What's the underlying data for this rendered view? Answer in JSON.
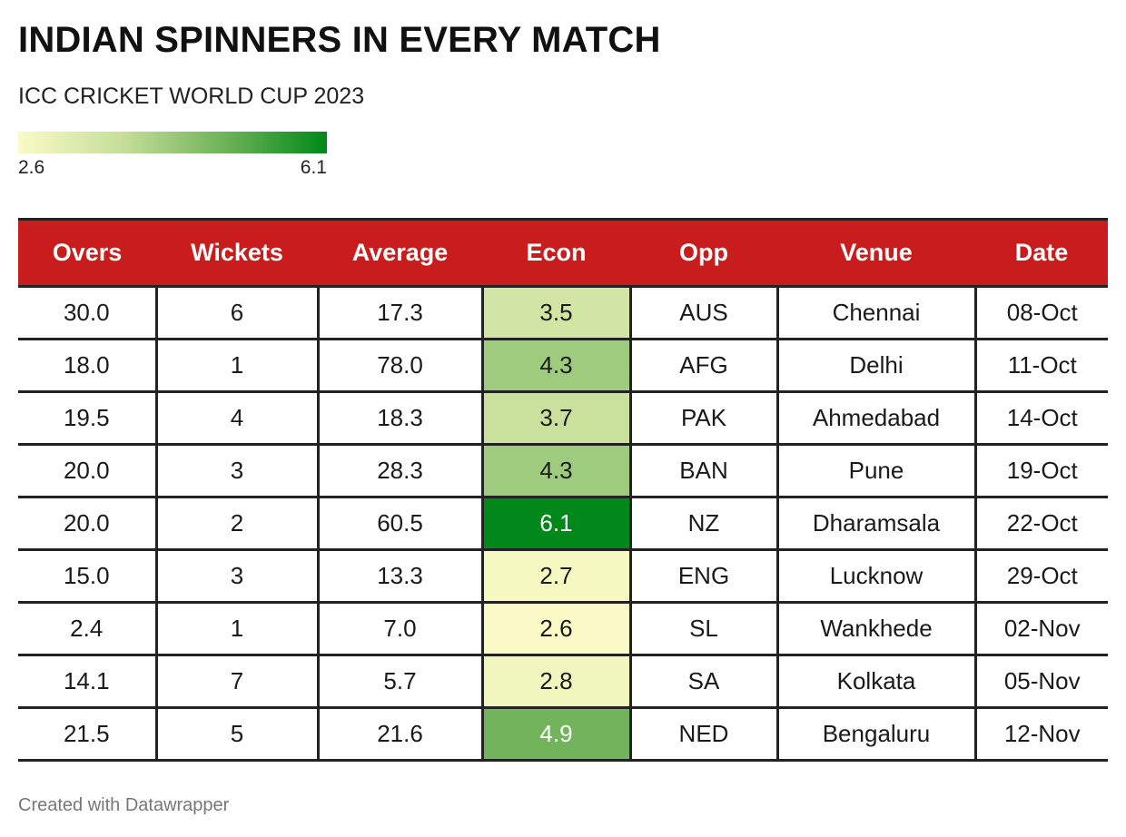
{
  "header": {
    "title": "INDIAN SPINNERS IN EVERY MATCH",
    "subtitle": "ICC CRICKET WORLD CUP 2023"
  },
  "legend": {
    "min_label": "2.6",
    "max_label": "6.1",
    "min_value": 2.6,
    "max_value": 6.1,
    "gradient_colors": [
      "#fafac6",
      "#c6df9a",
      "#6fb35a",
      "#00891a"
    ]
  },
  "colors": {
    "header_bg": "#c91c1c",
    "header_text": "#ffffff",
    "border": "#222222"
  },
  "chart_data": {
    "type": "table",
    "title": "INDIAN SPINNERS IN EVERY MATCH",
    "subtitle": "ICC CRICKET WORLD CUP 2023",
    "columns": [
      "Overs",
      "Wickets",
      "Average",
      "Econ",
      "Opp",
      "Venue",
      "Date"
    ],
    "heatmap_column": "Econ",
    "rows": [
      [
        "30.0",
        "6",
        "17.3",
        "3.5",
        "AUS",
        "Chennai",
        "08-Oct"
      ],
      [
        "18.0",
        "1",
        "78.0",
        "4.3",
        "AFG",
        "Delhi",
        "11-Oct"
      ],
      [
        "19.5",
        "4",
        "18.3",
        "3.7",
        "PAK",
        "Ahmedabad",
        "14-Oct"
      ],
      [
        "20.0",
        "3",
        "28.3",
        "4.3",
        "BAN",
        "Pune",
        "19-Oct"
      ],
      [
        "20.0",
        "2",
        "60.5",
        "6.1",
        "NZ",
        "Dharamsala",
        "22-Oct"
      ],
      [
        "15.0",
        "3",
        "13.3",
        "2.7",
        "ENG",
        "Lucknow",
        "29-Oct"
      ],
      [
        "2.4",
        "1",
        "7.0",
        "2.6",
        "SL",
        "Wankhede",
        "02-Nov"
      ],
      [
        "14.1",
        "7",
        "5.7",
        "2.8",
        "SA",
        "Kolkata",
        "05-Nov"
      ],
      [
        "21.5",
        "5",
        "21.6",
        "4.9",
        "NED",
        "Bengaluru",
        "12-Nov"
      ]
    ]
  },
  "footer": {
    "credit": "Created with Datawrapper"
  }
}
